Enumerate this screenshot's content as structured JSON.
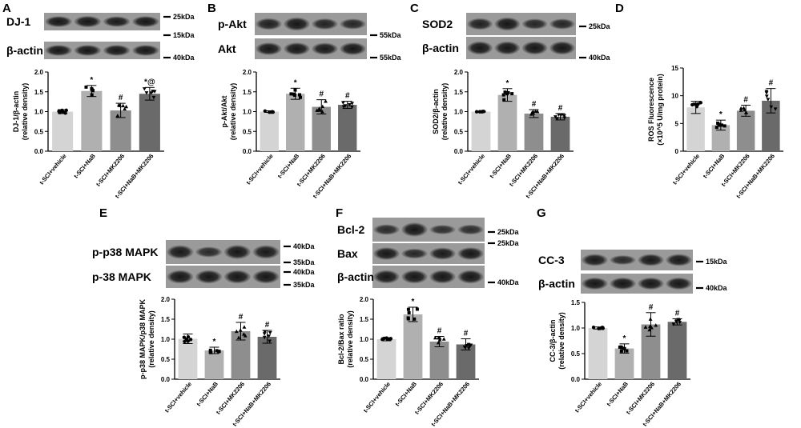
{
  "panels": [
    {
      "letter": "A",
      "blot_rows": [
        {
          "label": "DJ-1",
          "markers": [
            "25kDa",
            "15kDa"
          ]
        },
        {
          "label": "β-actin",
          "markers": [
            "40kDa"
          ]
        }
      ],
      "chart_data": {
        "type": "bar",
        "ylabel": [
          "DJ-1/β-actin",
          "(relative density)"
        ],
        "ylim": [
          0,
          2.0
        ],
        "yticks": [
          "0.0",
          "0.5",
          "1.0",
          "1.5",
          "2.0"
        ],
        "categories": [
          "t-SCI+vehicle",
          "t-SCI+NaB",
          "t-SCI+MK2206",
          "t-SCI+NaB+MK2206"
        ],
        "values": [
          1.0,
          1.52,
          1.03,
          1.45
        ],
        "errors": [
          0.05,
          0.14,
          0.18,
          0.16
        ],
        "significance": [
          "",
          "*",
          "#",
          "*@"
        ],
        "bar_colors": [
          "#d4d4d4",
          "#b0b0b0",
          "#8e8e8e",
          "#6a6a6a"
        ]
      }
    },
    {
      "letter": "B",
      "blot_rows": [
        {
          "label": "p-Akt",
          "markers": [
            "55kDa"
          ]
        },
        {
          "label": "Akt",
          "markers": [
            "55kDa"
          ]
        }
      ],
      "chart_data": {
        "type": "bar",
        "ylabel": [
          "p-Akt/Akt",
          "(relative density)"
        ],
        "ylim": [
          0,
          2.0
        ],
        "yticks": [
          "0.0",
          "0.5",
          "1.0",
          "1.5",
          "2.0"
        ],
        "categories": [
          "t-SCI+vehicle",
          "t-SCI+NaB",
          "t-SCI+MK2206",
          "t-SCI+NaB+MK2206"
        ],
        "values": [
          1.0,
          1.45,
          1.12,
          1.17
        ],
        "errors": [
          0.02,
          0.14,
          0.18,
          0.09
        ],
        "significance": [
          "",
          "*",
          "#",
          "#"
        ],
        "bar_colors": [
          "#d4d4d4",
          "#b0b0b0",
          "#8e8e8e",
          "#6a6a6a"
        ]
      }
    },
    {
      "letter": "C",
      "blot_rows": [
        {
          "label": "SOD2",
          "markers": [
            "25kDa"
          ]
        },
        {
          "label": "β-actin",
          "markers": [
            "40kDa"
          ]
        }
      ],
      "chart_data": {
        "type": "bar",
        "ylabel": [
          "SOD2/β-actin",
          "(relative density)"
        ],
        "ylim": [
          0,
          2.0
        ],
        "yticks": [
          "0.0",
          "0.5",
          "1.0",
          "1.5",
          "2.0"
        ],
        "categories": [
          "t-SCI+vehicle",
          "t-SCI+NaB",
          "t-SCI+MK2206",
          "t-SCI+NaB+MK2206"
        ],
        "values": [
          1.0,
          1.42,
          0.95,
          0.87
        ],
        "errors": [
          0.01,
          0.16,
          0.1,
          0.08
        ],
        "significance": [
          "",
          "*",
          "#",
          "#"
        ],
        "bar_colors": [
          "#d4d4d4",
          "#b0b0b0",
          "#8e8e8e",
          "#6a6a6a"
        ]
      }
    },
    {
      "letter": "D",
      "blot_rows": [],
      "chart_data": {
        "type": "bar",
        "ylabel": [
          "ROS Fluorescence",
          "(×10^5 U/mg protein)"
        ],
        "ylim": [
          0,
          15
        ],
        "yticks": [
          "0",
          "5",
          "10",
          "15"
        ],
        "categories": [
          "t-SCI+vehicle",
          "t-SCI+NaB",
          "t-SCI+MK2206",
          "t-SCI+NaB+MK2206"
        ],
        "values": [
          7.9,
          4.7,
          7.3,
          9.1
        ],
        "errors": [
          1.1,
          0.9,
          1.0,
          2.2
        ],
        "significance": [
          "",
          "*",
          "#",
          "#"
        ],
        "bar_colors": [
          "#d4d4d4",
          "#b0b0b0",
          "#8e8e8e",
          "#6a6a6a"
        ]
      }
    },
    {
      "letter": "E",
      "blot_rows": [
        {
          "label": "p-p38 MAPK",
          "markers": [
            "40kDa",
            "35kDa"
          ]
        },
        {
          "label": "p-38 MAPK",
          "markers": [
            "40kDa",
            "35kDa"
          ]
        }
      ],
      "chart_data": {
        "type": "bar",
        "ylabel": [
          "p-p38 MAPK/p38 MAPK",
          "(relative density)"
        ],
        "ylim": [
          0,
          2.0
        ],
        "yticks": [
          "0.0",
          "0.5",
          "1.0",
          "1.5",
          "2.0"
        ],
        "categories": [
          "t-SCI+vehicle",
          "t-SCI+NaB",
          "t-SCI+MK2206",
          "t-SCI+NaB+MK2206"
        ],
        "values": [
          1.01,
          0.72,
          1.2,
          1.06
        ],
        "errors": [
          0.12,
          0.08,
          0.22,
          0.16
        ],
        "significance": [
          "",
          "*",
          "#",
          "#"
        ],
        "bar_colors": [
          "#d4d4d4",
          "#b0b0b0",
          "#8e8e8e",
          "#6a6a6a"
        ]
      }
    },
    {
      "letter": "F",
      "blot_rows": [
        {
          "label": "Bcl-2",
          "markers": [
            "25kDa"
          ]
        },
        {
          "label": "Bax",
          "markers": [
            "25kDa"
          ]
        },
        {
          "label": "β-actin",
          "markers": [
            "40kDa"
          ]
        }
      ],
      "chart_data": {
        "type": "bar",
        "ylabel": [
          "Bcl-2/Bax ratio",
          "(relative density)"
        ],
        "ylim": [
          0,
          2.0
        ],
        "yticks": [
          "0.0",
          "0.5",
          "1.0",
          "1.5",
          "2.0"
        ],
        "categories": [
          "t-SCI+vehicle",
          "t-SCI+NaB",
          "t-SCI+MK2206",
          "t-SCI+NaB+MK2206"
        ],
        "values": [
          1.0,
          1.62,
          0.94,
          0.87
        ],
        "errors": [
          0.04,
          0.18,
          0.13,
          0.14
        ],
        "significance": [
          "",
          "*",
          "#",
          "#"
        ],
        "bar_colors": [
          "#d4d4d4",
          "#b0b0b0",
          "#8e8e8e",
          "#6a6a6a"
        ]
      }
    },
    {
      "letter": "G",
      "blot_rows": [
        {
          "label": "CC-3",
          "markers": [
            "15kDa"
          ]
        },
        {
          "label": "β-actin",
          "markers": [
            "40kDa"
          ]
        }
      ],
      "chart_data": {
        "type": "bar",
        "ylabel": [
          "CC-3/β-actin",
          "(relative density)"
        ],
        "ylim": [
          0,
          1.5
        ],
        "yticks": [
          "0.0",
          "0.5",
          "1.0",
          "1.5"
        ],
        "categories": [
          "t-SCI+vehicle",
          "t-SCI+NaB",
          "t-SCI+MK2206",
          "t-SCI+NaB+MK2206"
        ],
        "values": [
          1.0,
          0.6,
          1.07,
          1.12
        ],
        "errors": [
          0.02,
          0.09,
          0.23,
          0.06
        ],
        "significance": [
          "",
          "*",
          "#",
          "#"
        ],
        "bar_colors": [
          "#d4d4d4",
          "#b0b0b0",
          "#8e8e8e",
          "#6a6a6a"
        ]
      }
    }
  ]
}
